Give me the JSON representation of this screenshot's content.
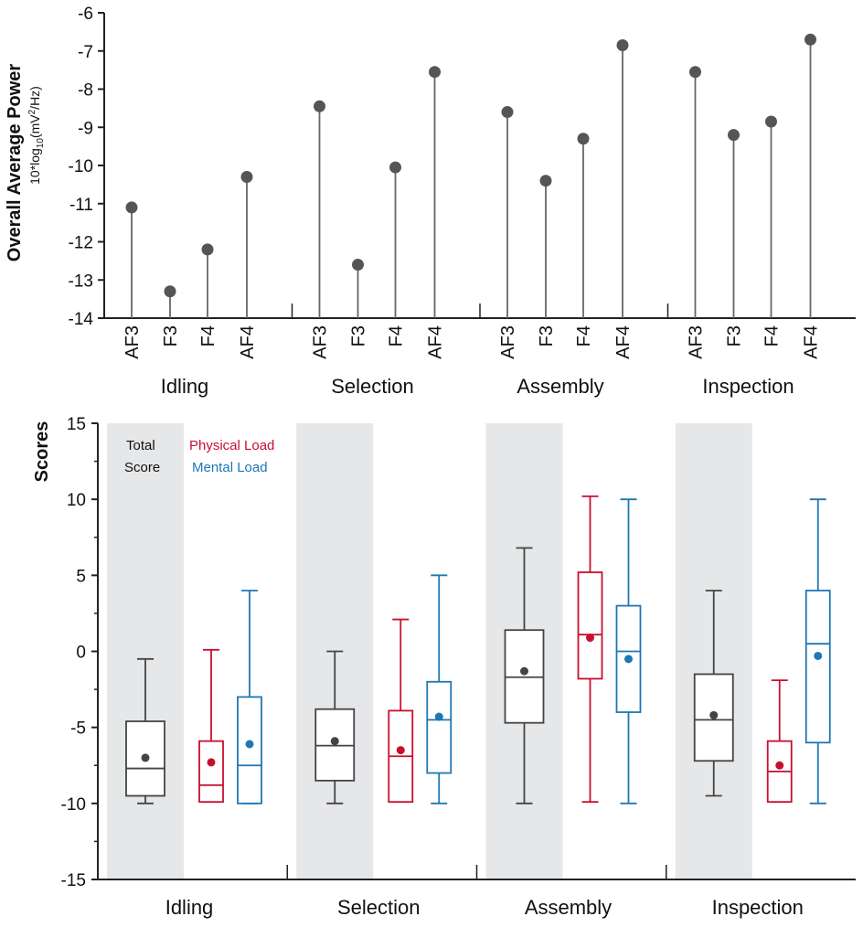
{
  "chart_data": [
    {
      "type": "lollipop",
      "ylabel": "Overall Average Power",
      "ylabel_unit": "10*log10(mV²/Hz)",
      "ylabel_unit_parts": {
        "pre": "10*log",
        "sub": "10",
        "mid": "(mV",
        "sup": "2",
        "post": "/Hz)"
      },
      "ylim": [
        -14,
        -6
      ],
      "yticks": [
        -6,
        -7,
        -8,
        -9,
        -10,
        -11,
        -12,
        -13,
        -14
      ],
      "channels": [
        "AF3",
        "F3",
        "F4",
        "AF4"
      ],
      "groups": [
        {
          "name": "Idling",
          "values": [
            -11.1,
            -13.3,
            -12.2,
            -10.3
          ]
        },
        {
          "name": "Selection",
          "values": [
            -8.45,
            -12.6,
            -10.05,
            -7.55
          ]
        },
        {
          "name": "Assembly",
          "values": [
            -8.6,
            -10.4,
            -9.3,
            -6.85
          ]
        },
        {
          "name": "Inspection",
          "values": [
            -7.55,
            -9.2,
            -8.85,
            -6.7
          ]
        }
      ]
    },
    {
      "type": "boxplot",
      "ylabel": "Scores",
      "ylim": [
        -15,
        15
      ],
      "yticks": [
        15,
        10,
        5,
        0,
        -5,
        -10,
        -15
      ],
      "legend": [
        {
          "label": "Total Score",
          "lines": [
            "Total",
            "Score"
          ],
          "color": "#444444"
        },
        {
          "label": "Physical Load",
          "color": "#c8102e"
        },
        {
          "label": "Mental Load",
          "color": "#1f77b4"
        }
      ],
      "shade_color": "#e6e7e8",
      "groups": [
        {
          "name": "Idling",
          "boxes": [
            {
              "series": "Total Score",
              "min": -10,
              "q1": -9.5,
              "median": -7.7,
              "q3": -4.6,
              "max": -0.5,
              "mean": -7.0
            },
            {
              "series": "Physical Load",
              "min": -9.9,
              "q1": -9.9,
              "median": -8.8,
              "q3": -5.9,
              "max": 0.1,
              "mean": -7.3
            },
            {
              "series": "Mental Load",
              "min": -10,
              "q1": -10,
              "median": -7.5,
              "q3": -3.0,
              "max": 4.0,
              "mean": -6.1
            }
          ]
        },
        {
          "name": "Selection",
          "boxes": [
            {
              "series": "Total Score",
              "min": -10,
              "q1": -8.5,
              "median": -6.2,
              "q3": -3.8,
              "max": 0.0,
              "mean": -5.9
            },
            {
              "series": "Physical Load",
              "min": -9.9,
              "q1": -9.9,
              "median": -6.9,
              "q3": -3.9,
              "max": 2.1,
              "mean": -6.5
            },
            {
              "series": "Mental Load",
              "min": -10,
              "q1": -8.0,
              "median": -4.5,
              "q3": -2.0,
              "max": 5.0,
              "mean": -4.3
            }
          ]
        },
        {
          "name": "Assembly",
          "boxes": [
            {
              "series": "Total Score",
              "min": -10,
              "q1": -4.7,
              "median": -1.7,
              "q3": 1.4,
              "max": 6.8,
              "mean": -1.3
            },
            {
              "series": "Physical Load",
              "min": -9.9,
              "q1": -1.8,
              "median": 1.1,
              "q3": 5.2,
              "max": 10.2,
              "mean": 0.9
            },
            {
              "series": "Mental Load",
              "min": -10,
              "q1": -4.0,
              "median": 0.0,
              "q3": 3.0,
              "max": 10.0,
              "mean": -0.5
            }
          ]
        },
        {
          "name": "Inspection",
          "boxes": [
            {
              "series": "Total Score",
              "min": -9.5,
              "q1": -7.2,
              "median": -4.5,
              "q3": -1.5,
              "max": 4.0,
              "mean": -4.2
            },
            {
              "series": "Physical Load",
              "min": -9.9,
              "q1": -9.9,
              "median": -7.9,
              "q3": -5.9,
              "max": -1.9,
              "mean": -7.5
            },
            {
              "series": "Mental Load",
              "min": -10,
              "q1": -6.0,
              "median": 0.5,
              "q3": 4.0,
              "max": 10.0,
              "mean": -0.3
            }
          ]
        }
      ]
    }
  ]
}
